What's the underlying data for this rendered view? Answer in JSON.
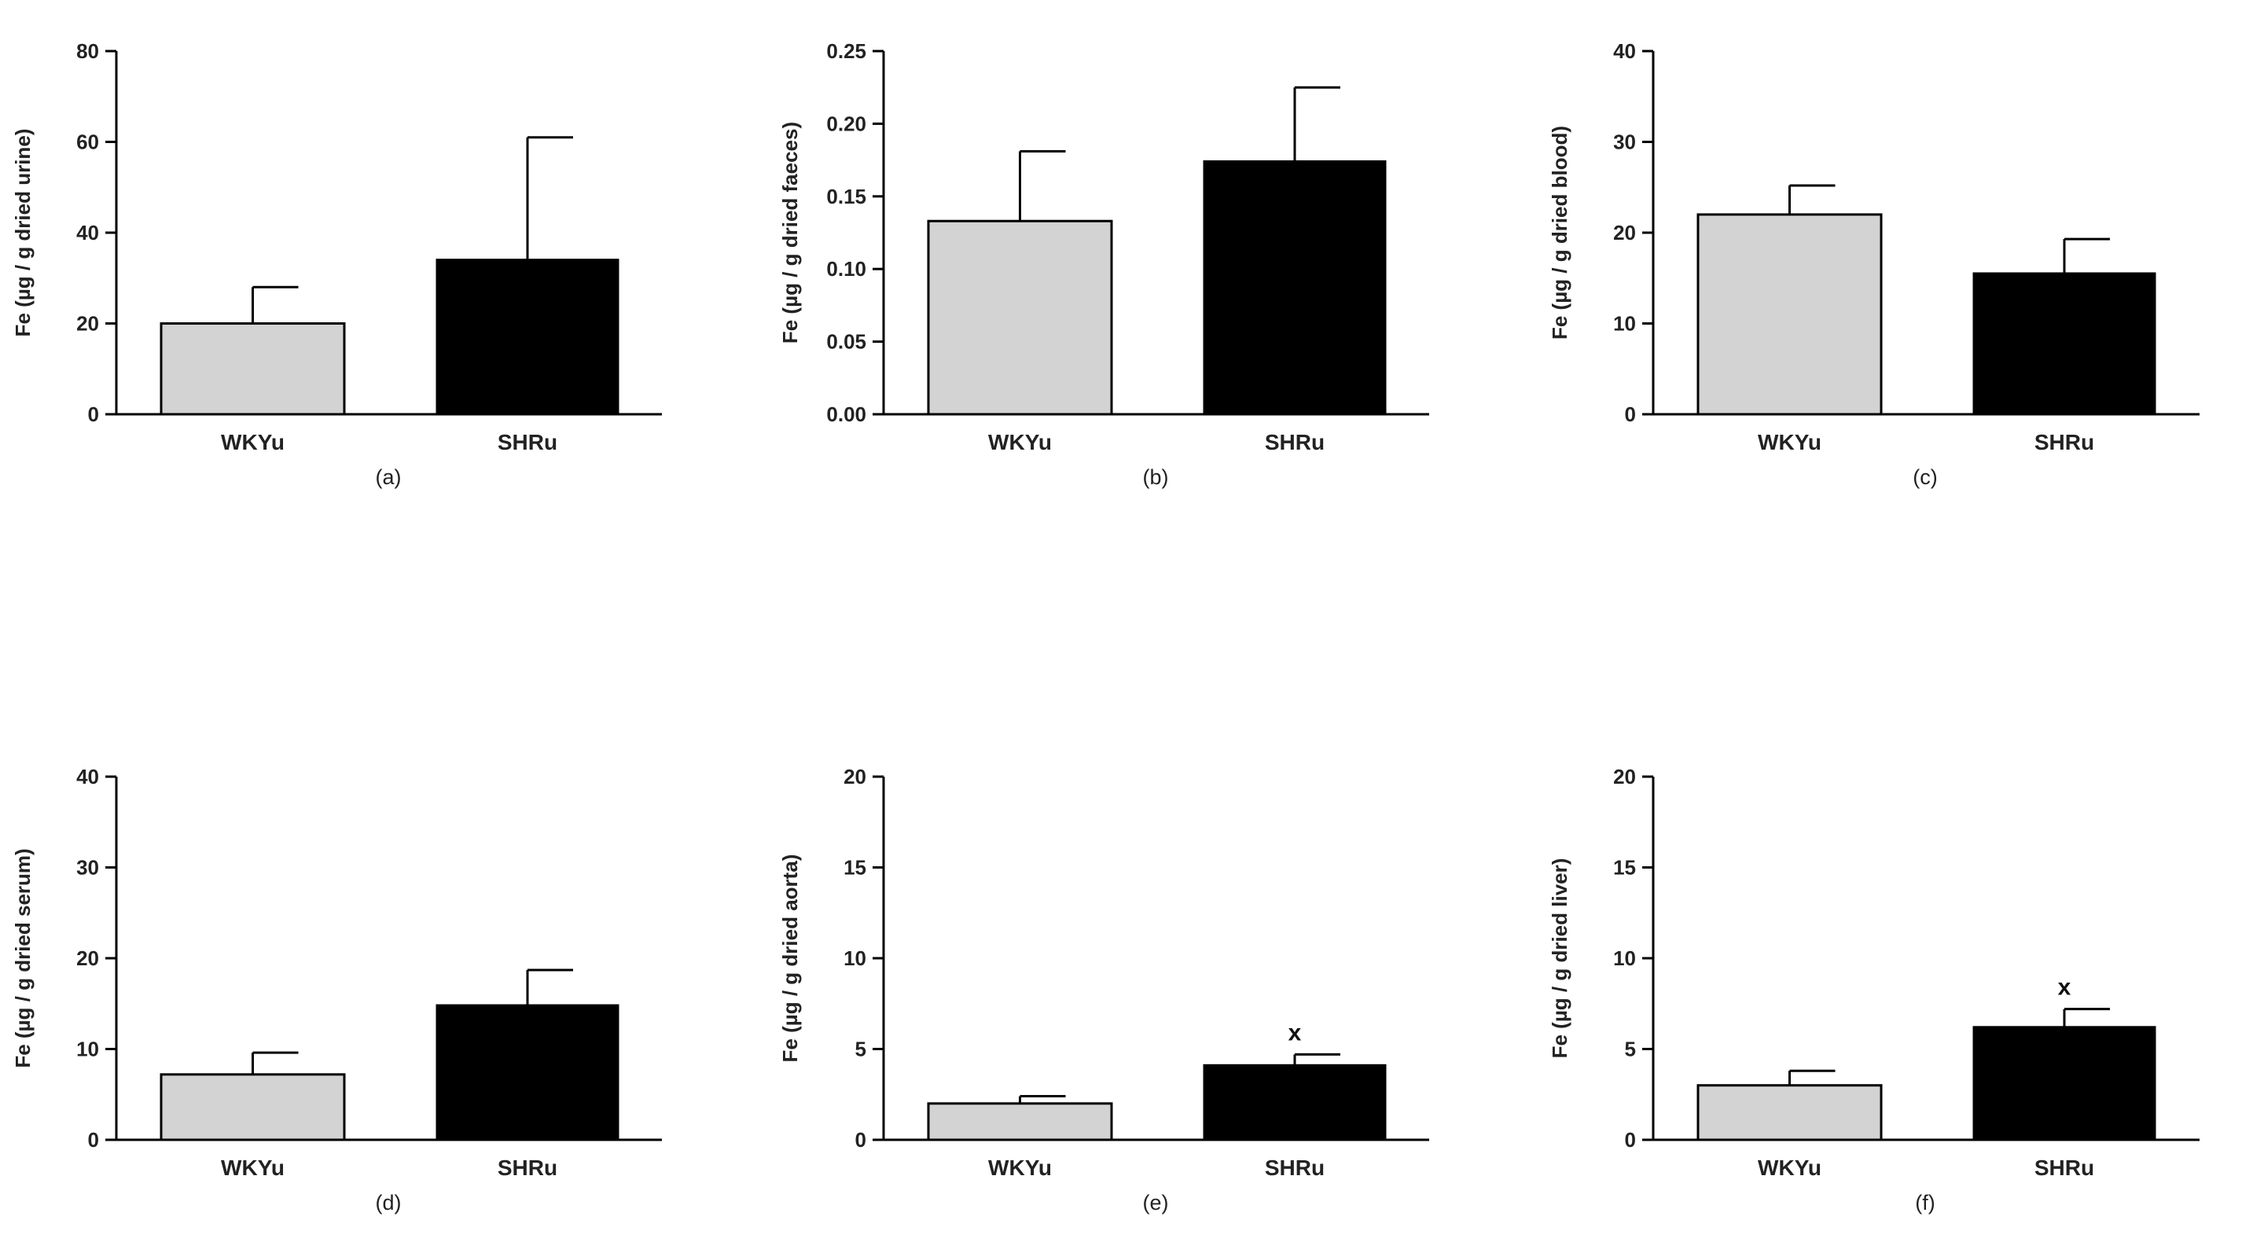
{
  "chart_data": [
    {
      "id": "a",
      "type": "bar",
      "panel_label": "(a)",
      "ylabel": "Fe (µg / g dried urine)",
      "ylim": [
        0,
        80
      ],
      "yticks": [
        0,
        20,
        40,
        60,
        80
      ],
      "categories": [
        "WKYu",
        "SHRu"
      ],
      "values": [
        20,
        34
      ],
      "errors": [
        8,
        27
      ],
      "fills": [
        "#d3d3d3",
        "#000000"
      ],
      "annotations": [
        "",
        ""
      ]
    },
    {
      "id": "b",
      "type": "bar",
      "panel_label": "(b)",
      "ylabel": "Fe (µg / g dried faeces)",
      "ylim": [
        0,
        0.25
      ],
      "yticks": [
        0.0,
        0.05,
        0.1,
        0.15,
        0.2,
        0.25
      ],
      "ytick_labels": [
        "0.00",
        "0.05",
        "0.10",
        "0.15",
        "0.20",
        "0.25"
      ],
      "categories": [
        "WKYu",
        "SHRu"
      ],
      "values": [
        0.133,
        0.174
      ],
      "errors": [
        0.048,
        0.051
      ],
      "fills": [
        "#d3d3d3",
        "#000000"
      ],
      "annotations": [
        "",
        ""
      ]
    },
    {
      "id": "c",
      "type": "bar",
      "panel_label": "(c)",
      "ylabel": "Fe (µg / g dried blood)",
      "ylim": [
        0,
        40
      ],
      "yticks": [
        0,
        10,
        20,
        30,
        40
      ],
      "categories": [
        "WKYu",
        "SHRu"
      ],
      "values": [
        22,
        15.5
      ],
      "errors": [
        3.2,
        3.8
      ],
      "fills": [
        "#d3d3d3",
        "#000000"
      ],
      "annotations": [
        "",
        ""
      ]
    },
    {
      "id": "d",
      "type": "bar",
      "panel_label": "(d)",
      "ylabel": "Fe (µg / g dried serum)",
      "ylim": [
        0,
        40
      ],
      "yticks": [
        0,
        10,
        20,
        30,
        40
      ],
      "categories": [
        "WKYu",
        "SHRu"
      ],
      "values": [
        7.2,
        14.8
      ],
      "errors": [
        2.4,
        3.9
      ],
      "fills": [
        "#d3d3d3",
        "#000000"
      ],
      "annotations": [
        "",
        ""
      ]
    },
    {
      "id": "e",
      "type": "bar",
      "panel_label": "(e)",
      "ylabel": "Fe (µg / g dried aorta)",
      "ylim": [
        0,
        20
      ],
      "yticks": [
        0,
        5,
        10,
        15,
        20
      ],
      "categories": [
        "WKYu",
        "SHRu"
      ],
      "values": [
        2.0,
        4.1
      ],
      "errors": [
        0.4,
        0.6
      ],
      "fills": [
        "#d3d3d3",
        "#000000"
      ],
      "annotations": [
        "",
        "x"
      ]
    },
    {
      "id": "f",
      "type": "bar",
      "panel_label": "(f)",
      "ylabel": "Fe (µg / g dried liver)",
      "ylim": [
        0,
        20
      ],
      "yticks": [
        0,
        5,
        10,
        15,
        20
      ],
      "categories": [
        "WKYu",
        "SHRu"
      ],
      "values": [
        3.0,
        6.2
      ],
      "errors": [
        0.8,
        1.0
      ],
      "fills": [
        "#d3d3d3",
        "#000000"
      ],
      "annotations": [
        "",
        "x"
      ]
    }
  ]
}
